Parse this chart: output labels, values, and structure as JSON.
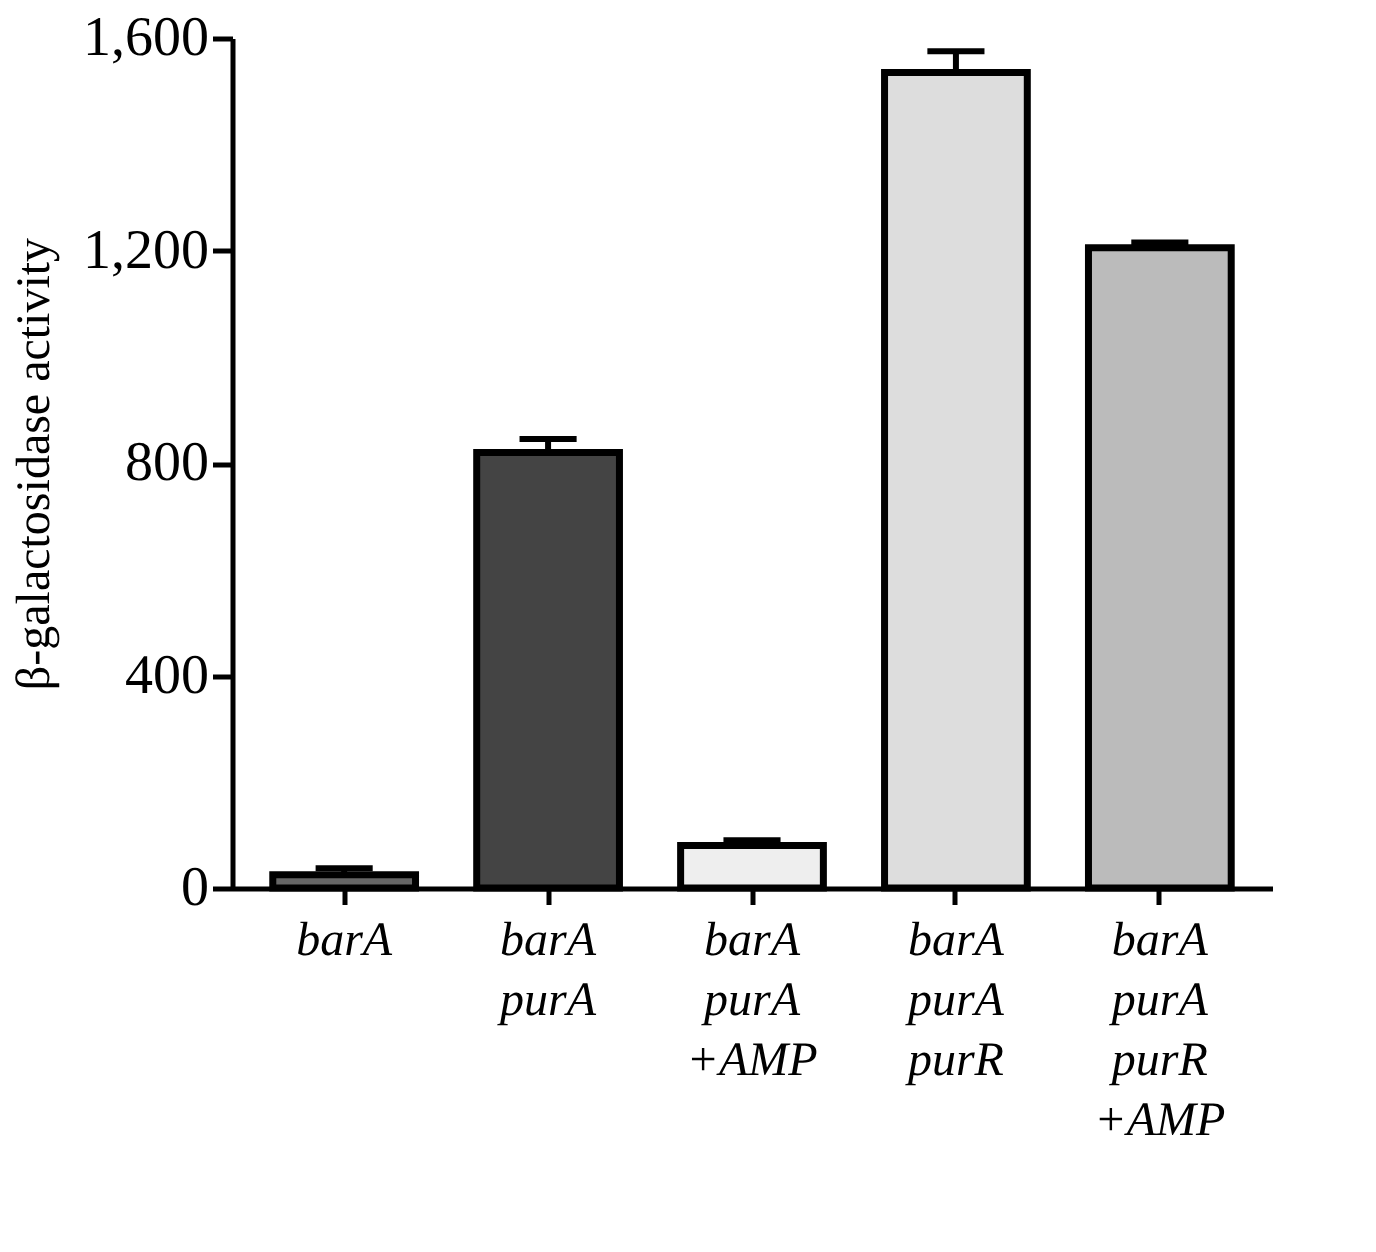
{
  "chart_data": {
    "type": "bar",
    "ylabel": "β-galactosidase activity",
    "categories": [
      "barA",
      "barA\npurA",
      "barA\npurA\n+AMP",
      "barA\npurA\npurR",
      "barA\npurA\npurR\n+AMP"
    ],
    "values": [
      25,
      820,
      80,
      1535,
      1205
    ],
    "errors": [
      12,
      25,
      10,
      40,
      10
    ],
    "colors": [
      "#666666",
      "#444444",
      "#eeeeee",
      "#dddddd",
      "#bbbbbb"
    ],
    "ylim": [
      0,
      1600
    ],
    "yticks": [
      {
        "value": 0,
        "label": "0"
      },
      {
        "value": 400,
        "label": "400"
      },
      {
        "value": 800,
        "label": "800"
      },
      {
        "value": 1200,
        "label": "1,200"
      },
      {
        "value": 1600,
        "label": "1,600"
      }
    ],
    "grid": false
  }
}
